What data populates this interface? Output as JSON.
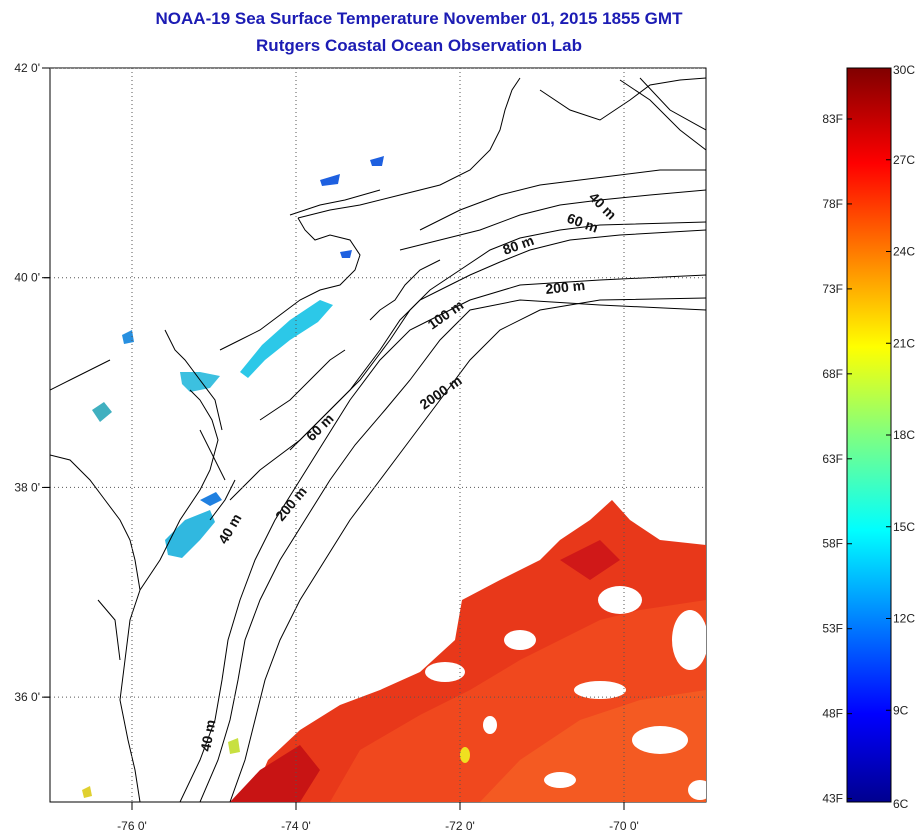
{
  "title": "NOAA-19 Sea Surface Temperature November 01, 2015 1855 GMT",
  "subtitle": "Rutgers Coastal Ocean Observation Lab",
  "map": {
    "lon_range": [
      -77,
      -69
    ],
    "lat_range": [
      35,
      42
    ],
    "lon_ticks": [
      {
        "value": -76,
        "label": "-76 0'"
      },
      {
        "value": -74,
        "label": "-74 0'"
      },
      {
        "value": -72,
        "label": "-72 0'"
      },
      {
        "value": -70,
        "label": "-70 0'"
      }
    ],
    "lat_ticks": [
      {
        "value": 42,
        "label": "42 0'"
      },
      {
        "value": 40,
        "label": "40 0'"
      },
      {
        "value": 38,
        "label": "38 0'"
      },
      {
        "value": 36,
        "label": "36 0'"
      }
    ],
    "depth_labels": [
      "40 m",
      "60 m",
      "80 m",
      "200 m",
      "100 m",
      "2000 m",
      "60 m",
      "200 m",
      "40 m",
      "40 m"
    ]
  },
  "colorbar": {
    "range_c": [
      6,
      30
    ],
    "celsius_labels": [
      "30C",
      "27C",
      "24C",
      "21C",
      "18C",
      "15C",
      "12C",
      "9C",
      "6C"
    ],
    "fahrenheit_labels": [
      "83F",
      "78F",
      "73F",
      "68F",
      "63F",
      "58F",
      "53F",
      "48F",
      "43F"
    ],
    "colormap": "jet"
  }
}
